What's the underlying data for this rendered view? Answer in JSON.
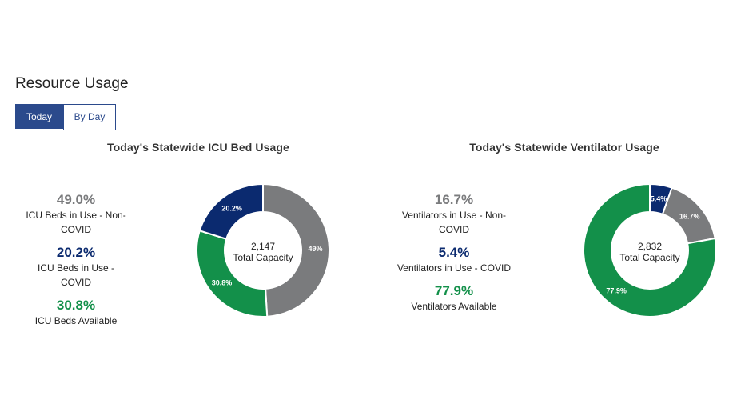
{
  "page": {
    "title": "Resource Usage"
  },
  "tabs": [
    {
      "label": "Today",
      "active": true
    },
    {
      "label": "By Day",
      "active": false
    }
  ],
  "colors": {
    "non_covid": "#7a7b7d",
    "covid": "#0b2a6f",
    "available": "#13904a",
    "tab_active": "#2b4a8c"
  },
  "chart_data": [
    {
      "type": "pie",
      "title": "Today's Statewide ICU Bed Usage",
      "center_value": "2,147",
      "center_label": "Total Capacity",
      "slices": [
        {
          "label": "ICU Beds in Use - Non-COVID",
          "value": 49.0,
          "display": "49.0%",
          "slice_label": "49%",
          "color": "#7a7b7d"
        },
        {
          "label": "ICU Beds in Use - COVID",
          "value": 20.2,
          "display": "20.2%",
          "slice_label": "20.2%",
          "color": "#0b2a6f"
        },
        {
          "label": "ICU Beds Available",
          "value": 30.8,
          "display": "30.8%",
          "slice_label": "30.8%",
          "color": "#13904a"
        }
      ],
      "draw_order": [
        0,
        2,
        1
      ]
    },
    {
      "type": "pie",
      "title": "Today's Statewide Ventilator Usage",
      "center_value": "2,832",
      "center_label": "Total Capacity",
      "slices": [
        {
          "label": "Ventilators in Use - Non-COVID",
          "value": 16.7,
          "display": "16.7%",
          "slice_label": "16.7%",
          "color": "#7a7b7d"
        },
        {
          "label": "Ventilators in Use - COVID",
          "value": 5.4,
          "display": "5.4%",
          "slice_label": "5.4%",
          "color": "#0b2a6f"
        },
        {
          "label": "Ventilators Available",
          "value": 77.9,
          "display": "77.9%",
          "slice_label": "77.9%",
          "color": "#13904a"
        }
      ],
      "draw_order": [
        1,
        0,
        2
      ]
    }
  ]
}
